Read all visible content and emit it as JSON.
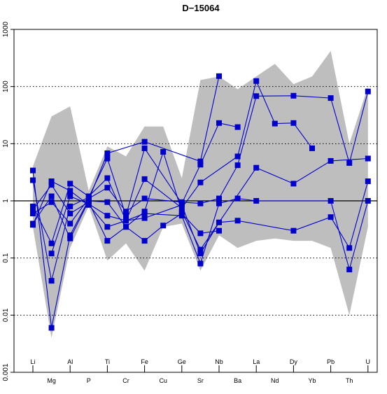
{
  "chart_data": {
    "type": "line",
    "title": "D−15064",
    "xlabel": "",
    "ylabel": "",
    "log_scale_y": true,
    "ylim": [
      0.001,
      1000
    ],
    "y_ticks": [
      {
        "value": 0.001,
        "label": "0.001"
      },
      {
        "value": 0.01,
        "label": "0.01"
      },
      {
        "value": 0.1,
        "label": "0.1"
      },
      {
        "value": 1,
        "label": "1"
      },
      {
        "value": 10,
        "label": "10"
      },
      {
        "value": 100,
        "label": "100"
      },
      {
        "value": 1000,
        "label": "1000"
      }
    ],
    "categories": [
      "Li",
      "Mg",
      "Al",
      "P",
      "Ti",
      "Cr",
      "Fe",
      "Cu",
      "Ge",
      "Sr",
      "Nb",
      "Ba",
      "La",
      "Nd",
      "Dy",
      "Yb",
      "Pb",
      "Th",
      "U"
    ],
    "label_rows": [
      "upper",
      "lower",
      "upper",
      "lower",
      "upper",
      "lower",
      "upper",
      "lower",
      "upper",
      "lower",
      "upper",
      "lower",
      "upper",
      "lower",
      "upper",
      "lower",
      "upper",
      "lower",
      "upper"
    ],
    "grid": "dotted horizontal at 0.01, 0.1, 10, 100",
    "reference_line": 1,
    "colors": {
      "series": "#0000cc",
      "band": "#bebebe",
      "axis": "#000000"
    },
    "envelope": {
      "max": [
        4.0,
        30,
        45,
        1.5,
        9,
        6,
        20,
        20,
        2.5,
        130,
        150,
        90,
        150,
        250,
        110,
        150,
        420,
        10,
        100
      ],
      "min": [
        0.35,
        0.004,
        0.15,
        0.8,
        0.09,
        0.18,
        0.06,
        0.35,
        0.4,
        0.06,
        0.25,
        0.15,
        0.2,
        0.22,
        0.2,
        0.2,
        0.15,
        0.01,
        0.35
      ]
    },
    "series": [
      {
        "values": [
          3.4,
          0.006,
          0.25,
          1.05,
          6.8,
          null,
          10.8,
          null,
          null,
          4.9,
          152,
          null,
          null,
          null,
          null,
          null,
          null,
          null,
          null
        ]
      },
      {
        "values": [
          2.3,
          0.04,
          0.8,
          1.15,
          5.5,
          0.55,
          8.3,
          null,
          0.9,
          4.3,
          23,
          19.5,
          null,
          null,
          null,
          null,
          null,
          null,
          null
        ]
      },
      {
        "values": [
          0.8,
          0.18,
          2.0,
          1.2,
          2.5,
          0.45,
          2.4,
          null,
          0.75,
          2.1,
          null,
          6.0,
          125,
          22.5,
          23,
          8.3,
          null,
          null,
          null
        ]
      },
      {
        "values": [
          0.7,
          1.9,
          0.6,
          0.95,
          0.2,
          0.35,
          0.2,
          0.37,
          0.6,
          0.27,
          0.3,
          null,
          null,
          null,
          null,
          null,
          null,
          null,
          null
        ]
      },
      {
        "values": [
          0.6,
          0.95,
          0.4,
          1.1,
          1.7,
          0.65,
          1.1,
          null,
          0.95,
          0.9,
          1.1,
          4.2,
          68,
          null,
          69,
          null,
          63,
          4.6,
          82
        ]
      },
      {
        "values": [
          0.4,
          1.2,
          0.22,
          1.0,
          0.95,
          0.35,
          0.65,
          7.2,
          0.65,
          0.14,
          null,
          null,
          3.8,
          null,
          2.0,
          null,
          5.0,
          null,
          5.5
        ]
      },
      {
        "values": [
          0.38,
          2.2,
          1.5,
          0.85,
          0.35,
          0.45,
          0.6,
          null,
          0.55,
          0.08,
          0.9,
          1.1,
          1.0,
          null,
          null,
          null,
          1.0,
          0.063,
          1.0
        ]
      },
      {
        "values": [
          null,
          0.12,
          1.2,
          0.88,
          0.55,
          0.45,
          0.5,
          null,
          0.85,
          0.12,
          0.42,
          0.45,
          null,
          null,
          0.3,
          null,
          0.52,
          0.15,
          2.2
        ]
      }
    ]
  }
}
